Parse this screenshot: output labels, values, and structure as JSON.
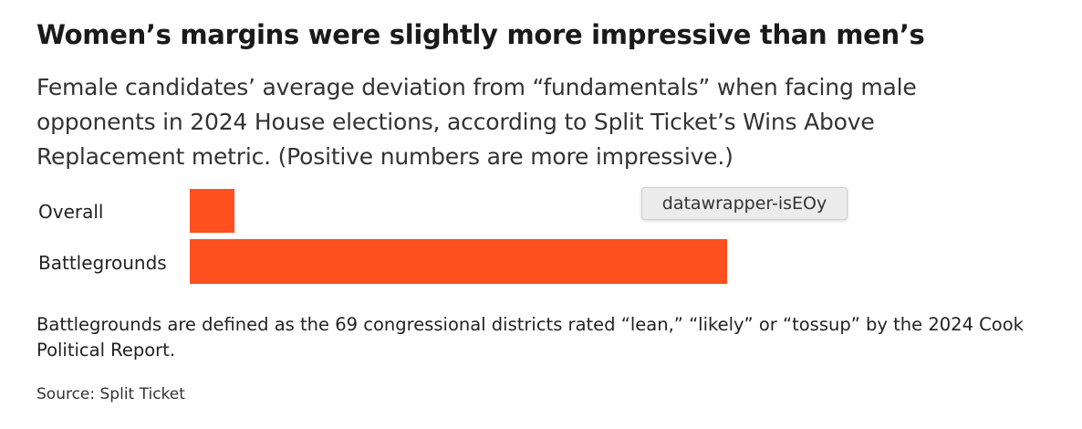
{
  "chart_data": {
    "type": "bar",
    "orientation": "horizontal",
    "title": "Women’s margins were slightly more impressive than men’s",
    "subtitle": "Female candidates’ average deviation from “fundamentals” when facing male opponents in 2024 House elections, according to Split Ticket’s Wins Above Replacement metric. (Positive numbers are more impressive.)",
    "categories": [
      "Overall",
      "Battlegrounds"
    ],
    "values": [
      0.1,
      1.2
    ],
    "xlim": [
      0,
      1.2
    ],
    "bar_color": "#ff5020",
    "grid": false,
    "legend": "none",
    "note": "Battlegrounds are defined as the 69 congressional districts rated “lean,” “likely” or “tossup” by the 2024 Cook Political Report.",
    "source": "Source: Split Ticket"
  },
  "tooltip": {
    "label": "datawrapper-isEOy"
  }
}
